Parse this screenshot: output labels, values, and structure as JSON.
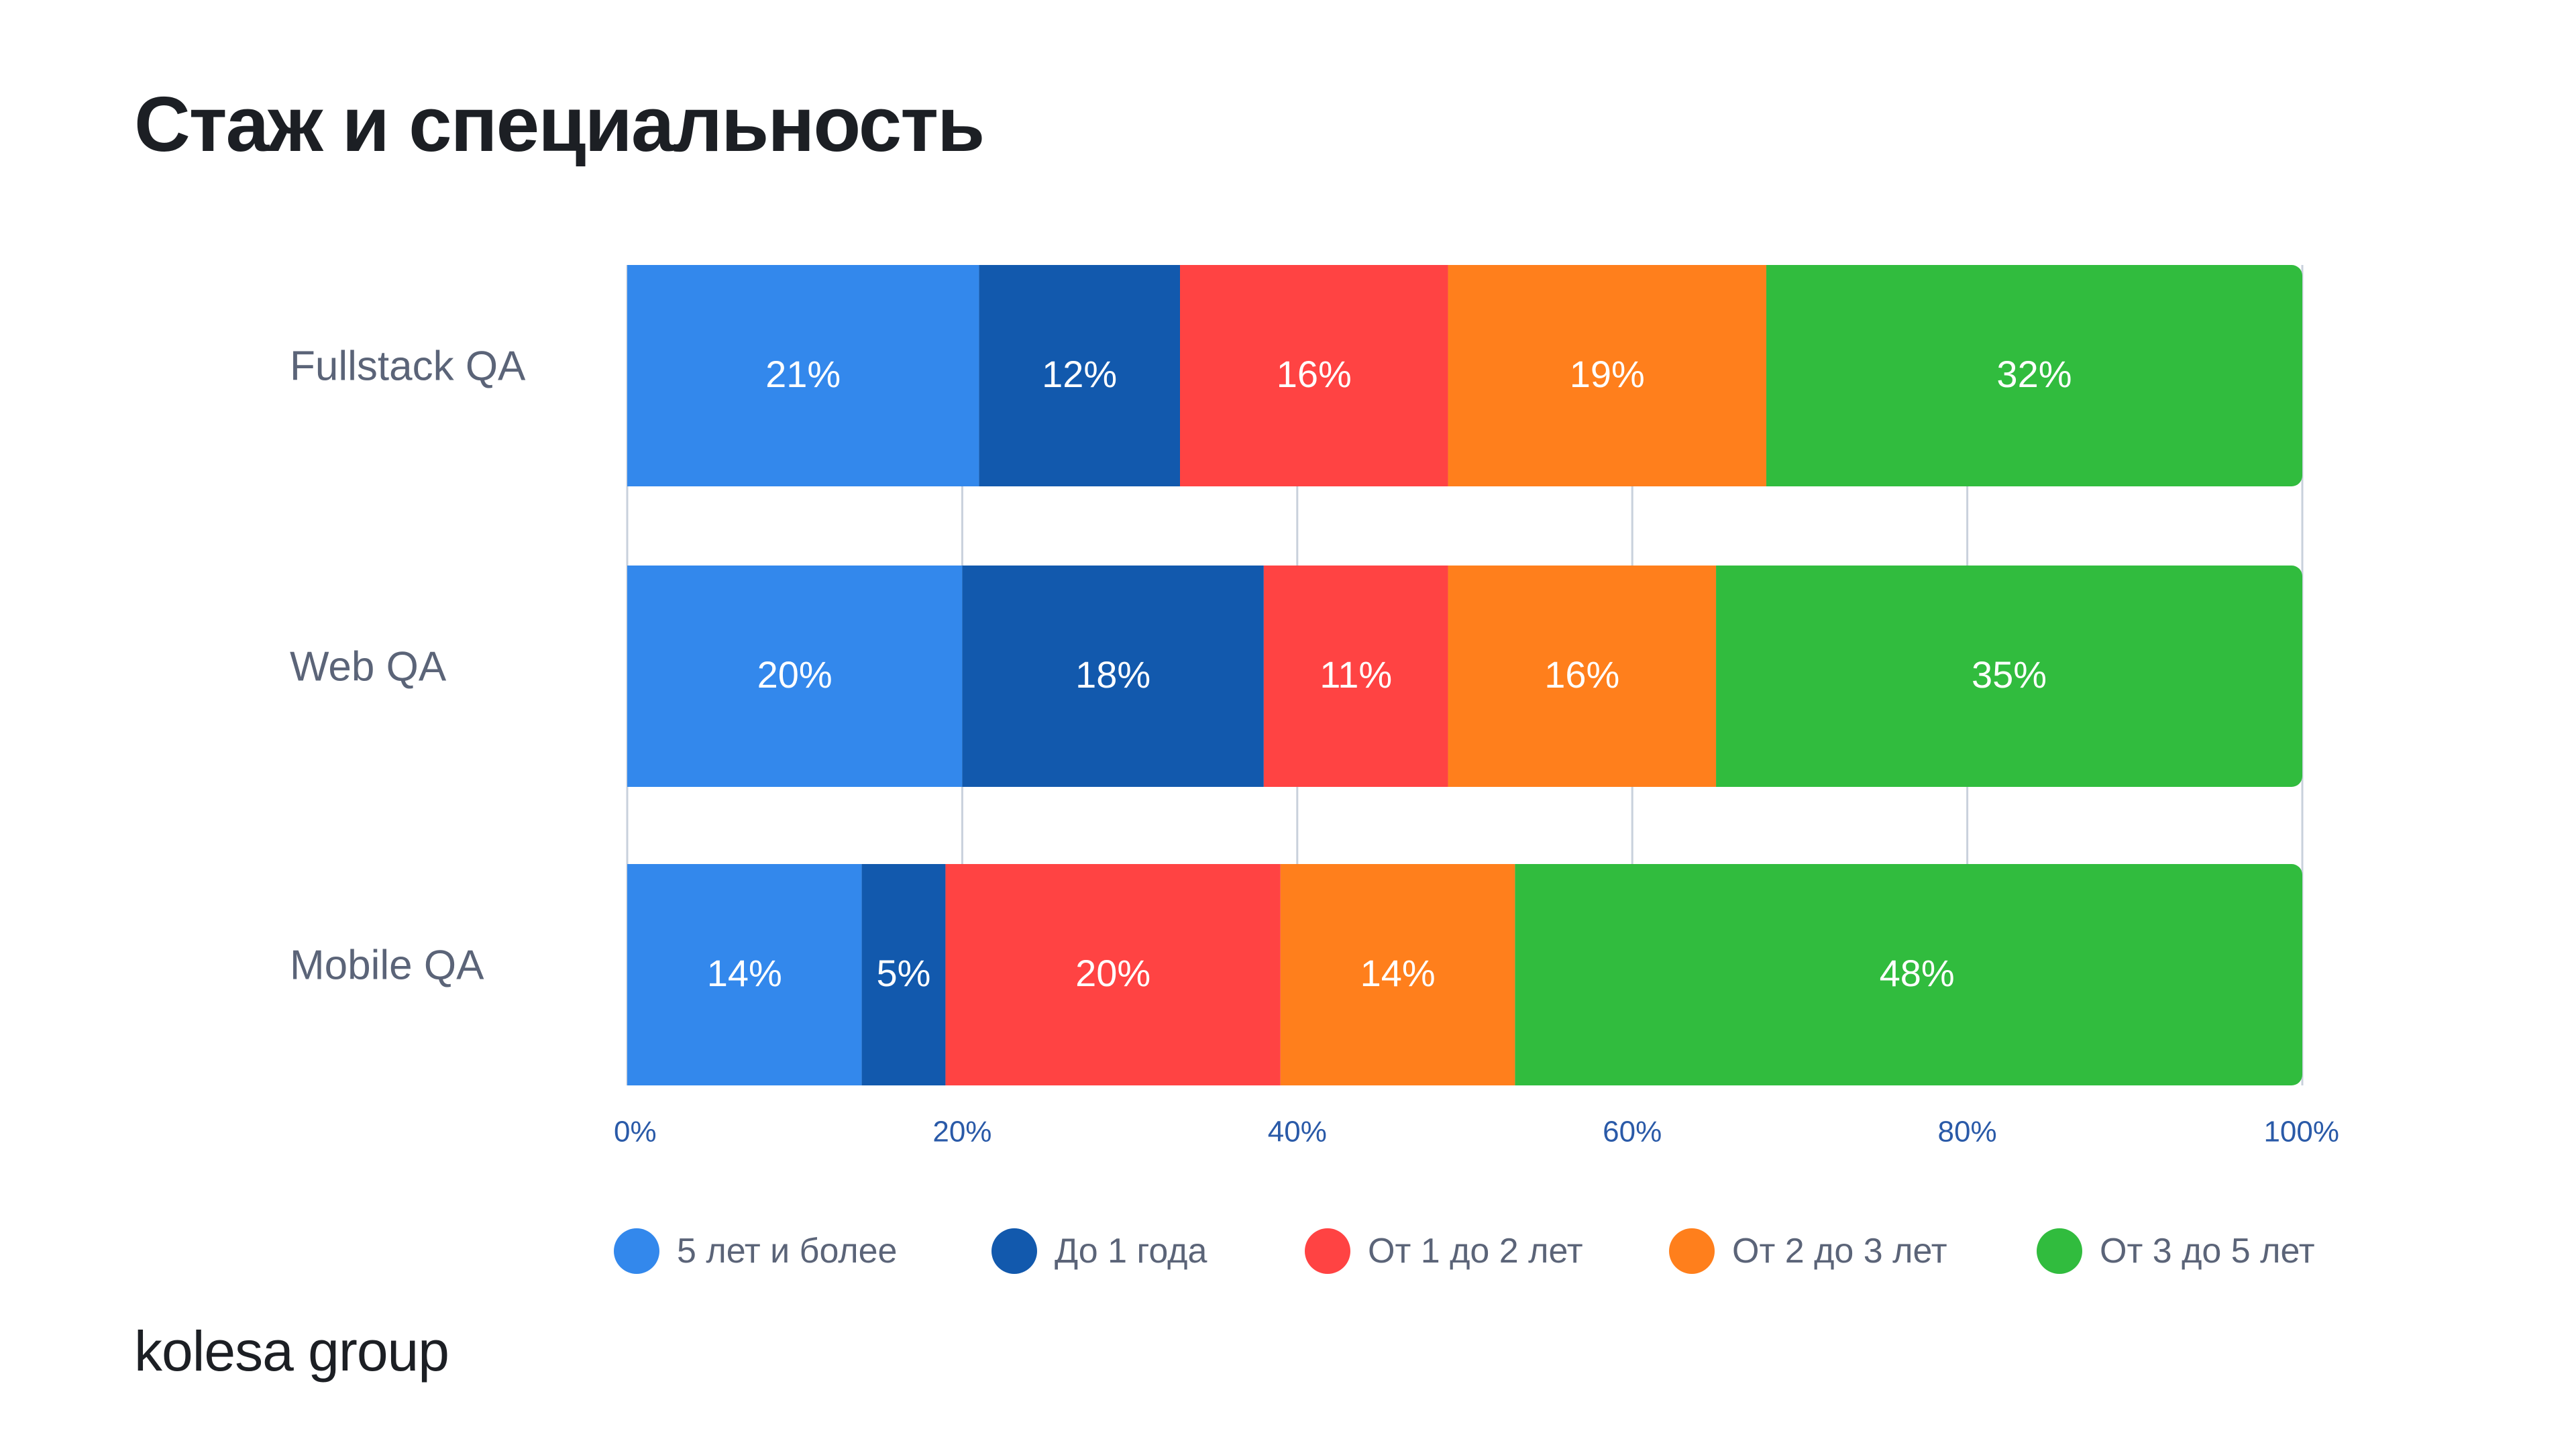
{
  "title": "Стаж и специальность",
  "brand": "kolesa group",
  "colors": {
    "5_plus": "#3388ec",
    "under_1": "#1259ad",
    "1_to_2": "#ff4343",
    "2_to_3": "#ff7f1c",
    "3_to_5": "#31bc3e",
    "grid": "#c9d1dc",
    "category_text": "#5b6478",
    "tick_text": "#2a5aa8"
  },
  "chart_data": {
    "type": "bar",
    "orientation": "horizontal",
    "stacked": true,
    "title": "Стаж и специальность",
    "categories": [
      "Fullstack QA",
      "Web QA",
      "Mobile QA"
    ],
    "series": [
      {
        "name": "5 лет и более",
        "color": "#3388ec",
        "values": [
          21,
          20,
          14
        ],
        "labels": [
          "21%",
          "20%",
          "14%"
        ]
      },
      {
        "name": "До 1 года",
        "color": "#1259ad",
        "values": [
          12,
          18,
          5
        ],
        "labels": [
          "12%",
          "18%",
          "5%"
        ]
      },
      {
        "name": "От 1 до 2 лет",
        "color": "#ff4343",
        "values": [
          16,
          11,
          20
        ],
        "labels": [
          "16%",
          "11%",
          "20%"
        ]
      },
      {
        "name": "От 2 до 3 лет",
        "color": "#ff7f1c",
        "values": [
          19,
          16,
          14
        ],
        "labels": [
          "19%",
          "16%",
          "14%"
        ]
      },
      {
        "name": "От 3 до 5 лет",
        "color": "#31bc3e",
        "values": [
          32,
          35,
          48
        ],
        "labels": [
          "32%",
          "35%",
          "48%"
        ]
      }
    ],
    "xlim": [
      0,
      100
    ],
    "xticks": [
      0,
      20,
      40,
      60,
      80,
      100
    ],
    "xtick_labels": [
      "0%",
      "20%",
      "40%",
      "60%",
      "80%",
      "100%"
    ],
    "grid": "vertical",
    "legend_position": "bottom"
  }
}
